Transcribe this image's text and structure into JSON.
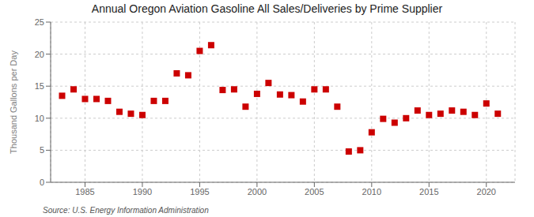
{
  "chart_data": {
    "type": "scatter",
    "title": "Annual Oregon Aviation Gasoline All Sales/Deliveries by Prime Supplier",
    "ylabel": "Thousand Gallons per Day",
    "annotations": [
      "Source: U.S. Energy Information Administration"
    ],
    "x": [
      1983,
      1984,
      1985,
      1986,
      1987,
      1988,
      1989,
      1990,
      1991,
      1992,
      1993,
      1994,
      1995,
      1996,
      1997,
      1998,
      1999,
      2000,
      2001,
      2002,
      2003,
      2004,
      2005,
      2006,
      2007,
      2008,
      2009,
      2010,
      2011,
      2012,
      2013,
      2014,
      2015,
      2016,
      2017,
      2018,
      2019,
      2020,
      2021
    ],
    "values": [
      13.5,
      14.5,
      13.0,
      13.0,
      12.7,
      11.0,
      10.7,
      10.5,
      12.7,
      12.7,
      17.0,
      16.7,
      20.5,
      21.4,
      14.4,
      14.5,
      11.8,
      13.8,
      15.5,
      13.7,
      13.6,
      12.6,
      14.5,
      14.5,
      11.8,
      4.8,
      5.0,
      7.8,
      9.9,
      9.3,
      10.0,
      11.2,
      10.5,
      10.7,
      11.2,
      11.0,
      10.5,
      12.3,
      10.7
    ],
    "color": "#cc0000",
    "marker": "square",
    "xlim": [
      1982,
      2022.5
    ],
    "ylim": [
      0,
      25
    ],
    "xticks": [
      1985,
      1990,
      1995,
      2000,
      2005,
      2010,
      2015,
      2020
    ],
    "yticks": [
      0,
      5,
      10,
      15,
      20,
      25
    ],
    "grid": true
  }
}
